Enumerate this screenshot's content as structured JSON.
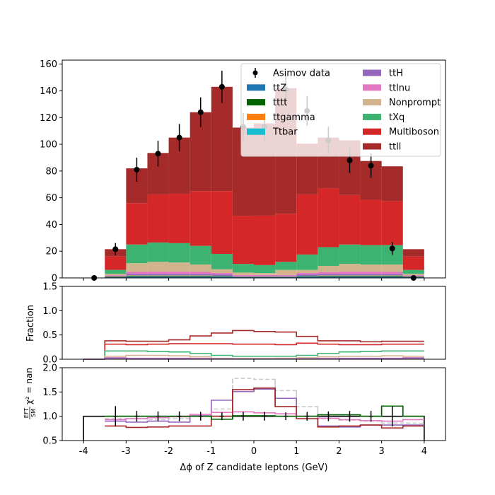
{
  "chart_data": {
    "type": "bar",
    "xlabel": "Δϕ of Z candidate leptons (GeV)",
    "bins": [
      -4,
      -3.5,
      -3,
      -2.5,
      -2,
      -1.5,
      -1,
      -0.5,
      0,
      0.5,
      1,
      1.5,
      2,
      2.5,
      3,
      3.5,
      4
    ],
    "xlim": [
      -4.5,
      4.5
    ],
    "xticks": [
      "-4",
      "-3",
      "-2",
      "-1",
      "0",
      "1",
      "2",
      "3",
      "4"
    ],
    "main": {
      "ylim": [
        0,
        163
      ],
      "yticks": [
        "0",
        "20",
        "40",
        "60",
        "80",
        "100",
        "120",
        "140",
        "160"
      ],
      "stack": [
        {
          "name": "ttZ",
          "color": "#1f77b4",
          "values": [
            0,
            0.5,
            1,
            1,
            1,
            1,
            1,
            0.5,
            0.5,
            0.5,
            1,
            1,
            1,
            1,
            1,
            0.5
          ]
        },
        {
          "name": "tttt",
          "color": "#006400",
          "values": [
            0,
            0.3,
            0.5,
            0.5,
            0.5,
            0.5,
            0.3,
            0.2,
            0.2,
            0.2,
            0.3,
            0.5,
            0.5,
            0.5,
            0.5,
            0.3
          ]
        },
        {
          "name": "ttgamma",
          "color": "#ff7f0e",
          "values": [
            0,
            0.2,
            0.3,
            0.3,
            0.3,
            0.3,
            0.2,
            0.1,
            0.1,
            0.1,
            0.2,
            0.3,
            0.3,
            0.3,
            0.3,
            0.2
          ]
        },
        {
          "name": "Ttbar",
          "color": "#17becf",
          "values": [
            0,
            0.1,
            0.2,
            0.2,
            0.2,
            0.2,
            0.1,
            0.1,
            0.1,
            0.1,
            0.1,
            0.2,
            0.2,
            0.2,
            0.2,
            0.1
          ]
        },
        {
          "name": "ttH",
          "color": "#9467bd",
          "values": [
            0,
            0.4,
            1,
            1,
            1,
            1,
            1,
            0.6,
            0.6,
            0.6,
            1,
            1,
            1,
            1,
            1,
            0.4
          ]
        },
        {
          "name": "ttlnu",
          "color": "#e377c2",
          "values": [
            0,
            0.5,
            1.5,
            1.7,
            1.7,
            1.5,
            1.1,
            0.7,
            0.7,
            0.7,
            1.1,
            1.4,
            1.7,
            1.7,
            1.5,
            0.5
          ]
        },
        {
          "name": "Nonprompt",
          "color": "#d2b48c",
          "values": [
            0,
            1,
            6.5,
            7.3,
            6.8,
            5.5,
            2.8,
            1.8,
            1.4,
            3.8,
            2.3,
            4.6,
            5.8,
            5.3,
            5.5,
            1
          ]
        },
        {
          "name": "tXq",
          "color": "#3cb371",
          "values": [
            0,
            3,
            14,
            14.5,
            14.5,
            14,
            11.5,
            6.5,
            6,
            6,
            11.5,
            14,
            14.5,
            14.5,
            14.5,
            3
          ]
        },
        {
          "name": "Multiboson",
          "color": "#d62728",
          "values": [
            0,
            10,
            31,
            36,
            37,
            41,
            47,
            36,
            37,
            36,
            45,
            44,
            37,
            34,
            33,
            10
          ]
        },
        {
          "name": "ttll",
          "color": "#a52a2a",
          "values": [
            0,
            5.5,
            26,
            31,
            42,
            59,
            78,
            66,
            69,
            94,
            38,
            38,
            41,
            29,
            26,
            5.5
          ]
        }
      ],
      "data": {
        "name": "Asimov data",
        "color": "#000000",
        "x": [
          -3.75,
          -3.25,
          -2.75,
          -2.25,
          -1.75,
          -1.25,
          -0.75,
          -0.25,
          0.25,
          0.75,
          1.25,
          1.75,
          2.25,
          2.75,
          3.25,
          3.75
        ],
        "y": [
          0,
          21.5,
          81,
          93,
          105,
          124,
          143,
          113,
          113,
          141,
          125,
          103,
          88,
          84,
          22,
          0
        ],
        "err": [
          0,
          4.6,
          9,
          9.6,
          10.2,
          11.1,
          12,
          10.6,
          10.6,
          11.9,
          11.2,
          10.1,
          9.4,
          9.2,
          4.7,
          0
        ]
      },
      "legend_position": "top-right",
      "legend_columns": 2
    },
    "fraction": {
      "ylabel": "Fraction",
      "ylim": [
        0,
        1.5
      ],
      "yticks": [
        "0.0",
        "0.5",
        "1.0",
        "1.5"
      ],
      "series": [
        {
          "color": "#a52a2a",
          "values": [
            0,
            0.38,
            0.37,
            0.37,
            0.4,
            0.48,
            0.54,
            0.59,
            0.57,
            0.56,
            0.47,
            0.38,
            0.38,
            0.36,
            0.37,
            0.37
          ]
        },
        {
          "color": "#d62728",
          "values": [
            0,
            0.31,
            0.3,
            0.31,
            0.32,
            0.32,
            0.32,
            0.31,
            0.31,
            0.3,
            0.33,
            0.31,
            0.3,
            0.3,
            0.31,
            0.31
          ]
        },
        {
          "color": "#3cb371",
          "values": [
            0,
            0.17,
            0.17,
            0.16,
            0.15,
            0.12,
            0.08,
            0.06,
            0.06,
            0.06,
            0.08,
            0.12,
            0.15,
            0.16,
            0.17,
            0.17
          ]
        },
        {
          "color": "#d2b48c",
          "values": [
            0,
            0.06,
            0.08,
            0.08,
            0.07,
            0.05,
            0.02,
            0.015,
            0.015,
            0.02,
            0.03,
            0.05,
            0.06,
            0.06,
            0.07,
            0.06
          ]
        },
        {
          "color": "#e377c2",
          "values": [
            0,
            0.03,
            0.02,
            0.02,
            0.02,
            0.015,
            0.01,
            0.006,
            0.006,
            0.006,
            0.01,
            0.015,
            0.02,
            0.02,
            0.02,
            0.03
          ]
        },
        {
          "color": "#9467bd",
          "values": [
            0,
            0.02,
            0.012,
            0.011,
            0.01,
            0.008,
            0.007,
            0.005,
            0.005,
            0.005,
            0.007,
            0.009,
            0.011,
            0.012,
            0.012,
            0.02
          ]
        }
      ]
    },
    "ratio": {
      "ylabel_top": "EFT",
      "ylabel_bottom": "SM",
      "ylabel_rest": "χ² = nan",
      "ylim": [
        0.5,
        2.0
      ],
      "yticks": [
        "0.5",
        "1.0",
        "1.5",
        "2.0"
      ],
      "reference": {
        "color": "#000000",
        "values": [
          1,
          1,
          1,
          1,
          1,
          1,
          1,
          1,
          1,
          1,
          1,
          1,
          1,
          1,
          1,
          1
        ]
      },
      "series": [
        {
          "color": "#cccccc",
          "dashed": true,
          "values": [
            null,
            0.95,
            0.95,
            0.93,
            0.95,
            1.01,
            1.15,
            1.78,
            1.76,
            1.53,
            1.2,
            0.95,
            0.92,
            0.9,
            0.86,
            0.86
          ]
        },
        {
          "color": "#9467bd",
          "dashed": false,
          "values": [
            null,
            0.9,
            0.88,
            0.9,
            0.88,
            1.01,
            1.33,
            1.51,
            1.56,
            1.37,
            1.0,
            0.8,
            0.78,
            0.82,
            0.82,
            0.82
          ]
        },
        {
          "color": "#e377c2",
          "dashed": false,
          "values": [
            null,
            0.93,
            0.95,
            0.97,
            0.99,
            1.04,
            1.08,
            1.09,
            1.07,
            1.05,
            1.0,
            0.96,
            0.93,
            0.91,
            0.9,
            0.93
          ]
        },
        {
          "color": "#a52a2a",
          "dashed": false,
          "values": [
            null,
            0.8,
            0.77,
            0.78,
            0.8,
            0.8,
            1.0,
            1.55,
            1.58,
            1.2,
            0.95,
            0.78,
            0.8,
            0.82,
            0.76,
            0.8
          ]
        },
        {
          "color": "#006400",
          "dashed": false,
          "values": [
            null,
            1.0,
            1.0,
            1.0,
            1.0,
            1.0,
            0.94,
            1.01,
            1.01,
            1.0,
            1.0,
            1.03,
            1.03,
            1.0,
            1.21,
            1.0
          ]
        }
      ],
      "data": {
        "color": "#000000",
        "x": [
          -3.25,
          -2.75,
          -2.25,
          -1.75,
          -1.25,
          -0.75,
          -0.25,
          0.25,
          0.75,
          1.25,
          1.75,
          2.25,
          2.75,
          3.25
        ],
        "y": [
          1,
          1,
          1,
          1,
          1,
          1,
          1,
          1,
          1,
          1,
          1,
          1,
          1,
          1
        ],
        "err": [
          0.21,
          0.11,
          0.1,
          0.1,
          0.09,
          0.08,
          0.09,
          0.09,
          0.08,
          0.09,
          0.1,
          0.11,
          0.11,
          0.21
        ]
      }
    }
  }
}
